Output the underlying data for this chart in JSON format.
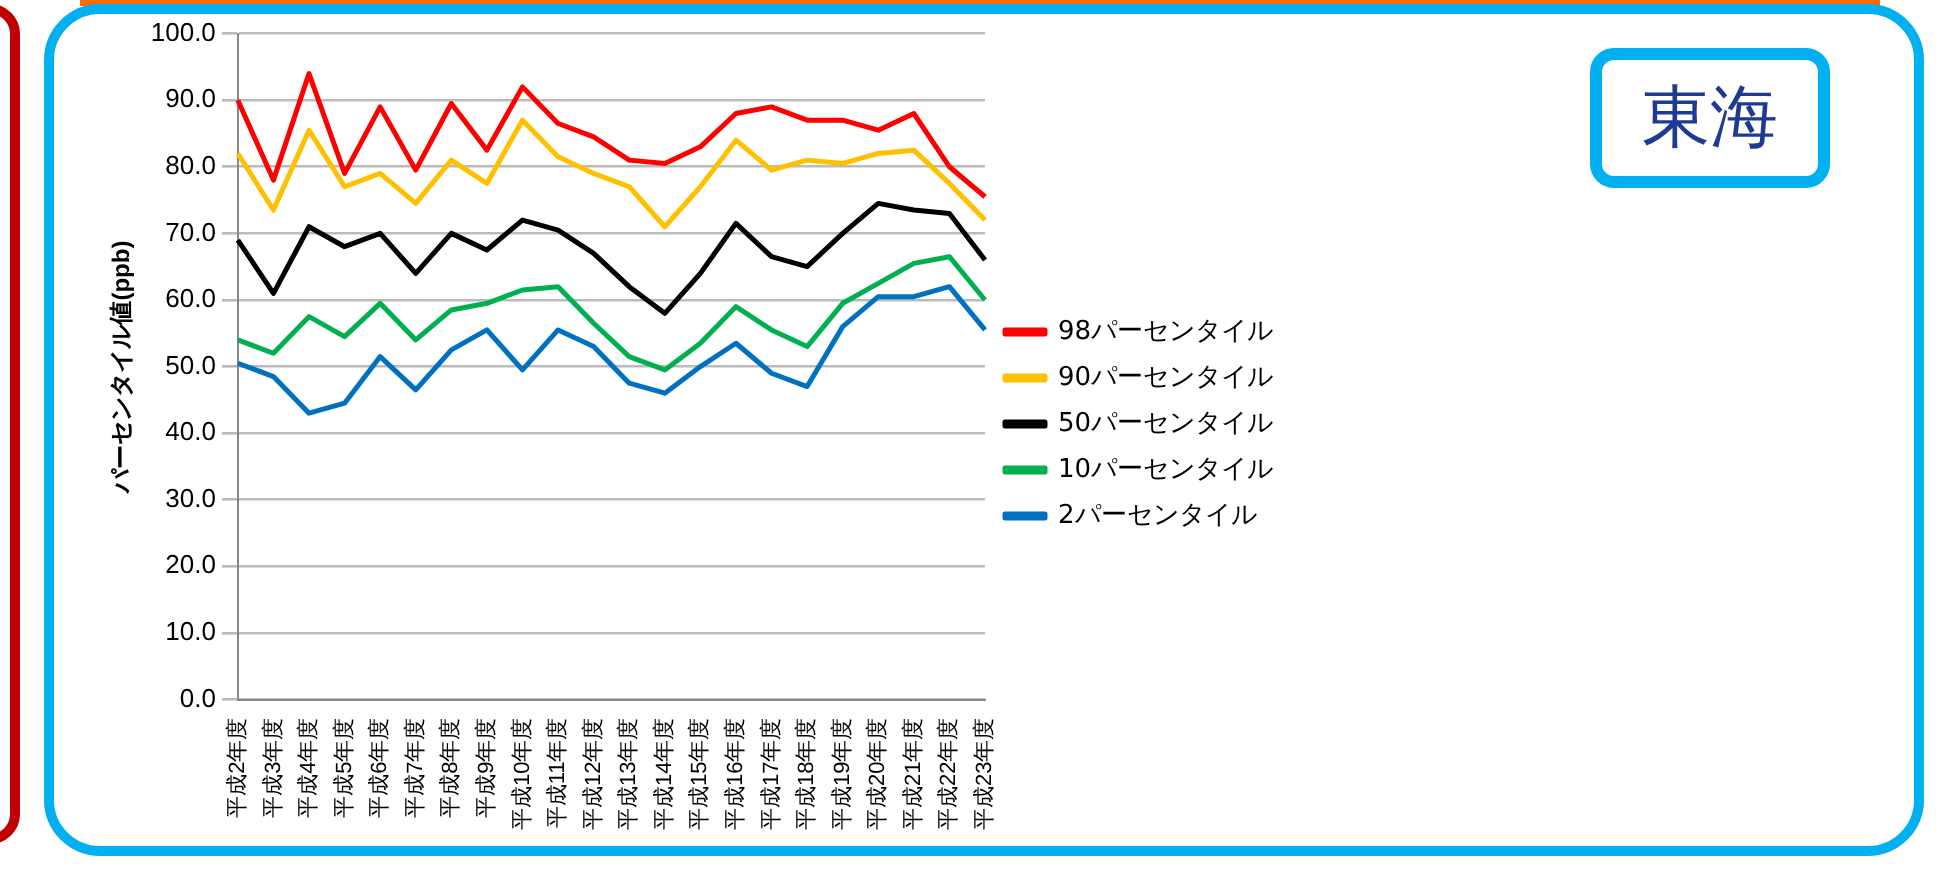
{
  "chart_data": {
    "type": "line",
    "ylabel": "パーセンタイル値(ppb)",
    "annotations": [
      "東海"
    ],
    "categories": [
      "平成2年度",
      "平成3年度",
      "平成4年度",
      "平成5年度",
      "平成6年度",
      "平成7年度",
      "平成8年度",
      "平成9年度",
      "平成10年度",
      "平成11年度",
      "平成12年度",
      "平成13年度",
      "平成14年度",
      "平成15年度",
      "平成16年度",
      "平成17年度",
      "平成18年度",
      "平成19年度",
      "平成20年度",
      "平成21年度",
      "平成22年度",
      "平成23年度"
    ],
    "series": [
      {
        "name": "98パーセンタイル",
        "color": "#ff0000",
        "values": [
          90,
          78,
          94,
          79,
          89,
          79.5,
          89.5,
          82.5,
          92,
          86.5,
          84.5,
          81,
          80.5,
          83,
          88,
          89,
          87,
          87,
          85.5,
          88,
          80,
          75.5
        ]
      },
      {
        "name": "90パーセンタイル",
        "color": "#ffc000",
        "values": [
          82,
          73.5,
          85.5,
          77,
          79,
          74.5,
          81,
          77.5,
          87,
          81.5,
          79,
          77,
          71,
          77,
          84,
          79.5,
          81,
          80.5,
          82,
          82.5,
          77.5,
          72
        ]
      },
      {
        "name": "50パーセンタイル",
        "color": "#000000",
        "values": [
          69,
          61,
          71,
          68,
          70,
          64,
          70,
          67.5,
          72,
          70.5,
          67,
          62,
          58,
          64,
          71.5,
          66.5,
          65,
          70,
          74.5,
          73.5,
          73,
          66
        ]
      },
      {
        "name": "10パーセンタイル",
        "color": "#00b050",
        "values": [
          54,
          52,
          57.5,
          54.5,
          59.5,
          54,
          58.5,
          59.5,
          61.5,
          62,
          56.5,
          51.5,
          49.5,
          53.5,
          59,
          55.5,
          53,
          59.5,
          62.5,
          65.5,
          66.5,
          60
        ]
      },
      {
        "name": "2パーセンタイル",
        "color": "#0070c0",
        "values": [
          50.5,
          48.5,
          43,
          44.5,
          51.5,
          46.5,
          52.5,
          55.5,
          49.5,
          55.5,
          53,
          47.5,
          46,
          50,
          53.5,
          49,
          47,
          56,
          60.5,
          60.5,
          62,
          55.5
        ]
      }
    ],
    "ylim": [
      0,
      100
    ],
    "yticks": [
      {
        "value": 0,
        "label": "0.0"
      },
      {
        "value": 10,
        "label": "10.0"
      },
      {
        "value": 20,
        "label": "20.0"
      },
      {
        "value": 30,
        "label": "30.0"
      },
      {
        "value": 40,
        "label": "40.0"
      },
      {
        "value": 50,
        "label": "50.0"
      },
      {
        "value": 60,
        "label": "60.0"
      },
      {
        "value": 70,
        "label": "70.0"
      },
      {
        "value": 80,
        "label": "80.0"
      },
      {
        "value": 90,
        "label": "90.0"
      },
      {
        "value": 100,
        "label": "100.0"
      }
    ],
    "grid": "y",
    "legend": "right",
    "marker": "none",
    "line_style": "solid"
  }
}
